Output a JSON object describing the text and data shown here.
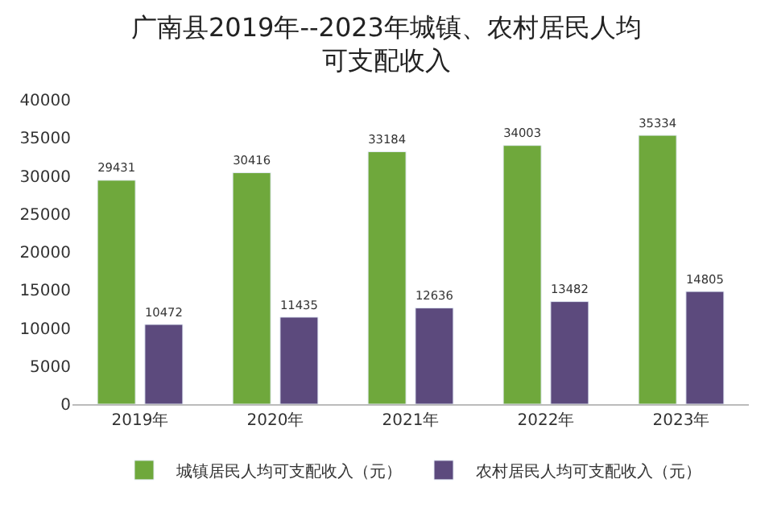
{
  "chart_data": {
    "type": "bar",
    "title": "广南县2019年--2023年城镇、农村居民人均可支配收入",
    "categories": [
      "2019年",
      "2020年",
      "2021年",
      "2022年",
      "2023年"
    ],
    "series": [
      {
        "name": "城镇居民人均可支配收入（元）",
        "color": "#6fa83c",
        "values": [
          29431,
          30416,
          33184,
          34003,
          35334
        ]
      },
      {
        "name": "农村居民人均可支配收入（元）",
        "color": "#5c4a7d",
        "values": [
          10472,
          11435,
          12636,
          13482,
          14805
        ]
      }
    ],
    "ylim": [
      0,
      40000
    ],
    "yticks": [
      0,
      5000,
      10000,
      15000,
      20000,
      25000,
      30000,
      35000,
      40000
    ],
    "legend": "bottom",
    "data_labels": true
  }
}
